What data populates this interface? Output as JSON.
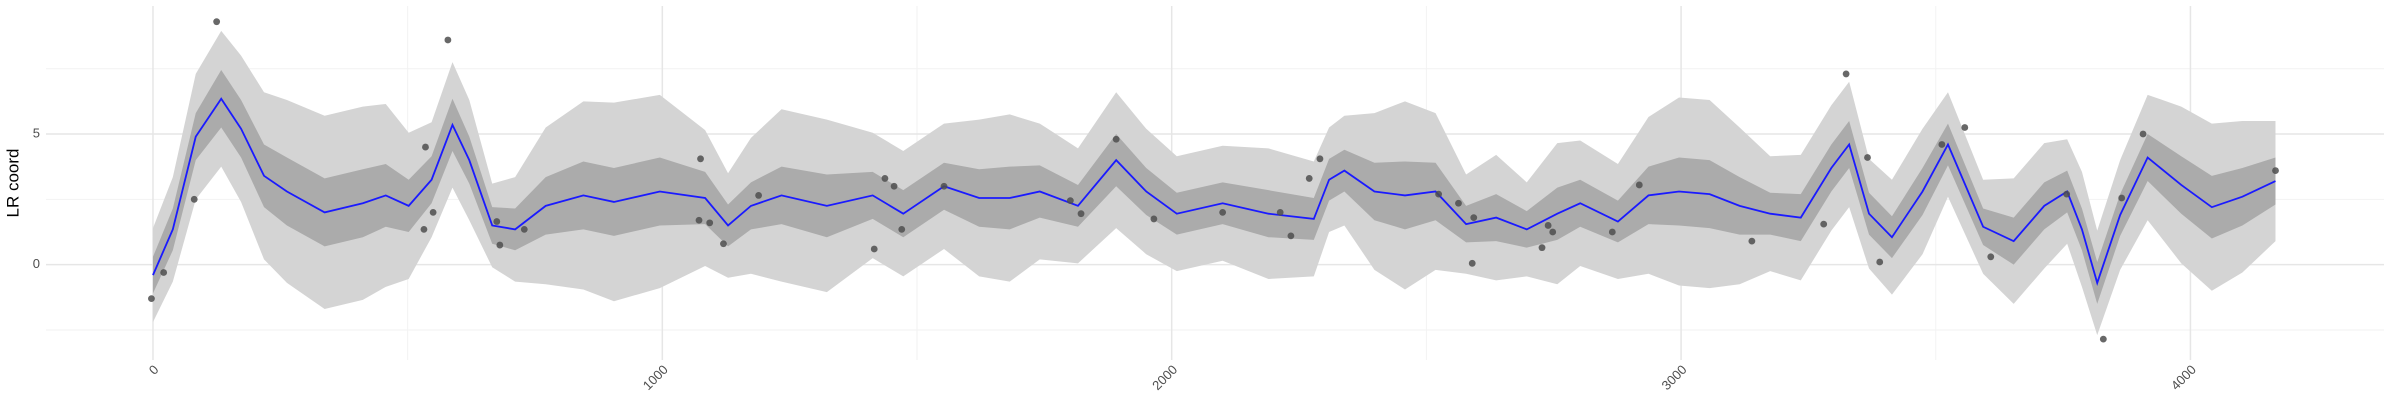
{
  "chart_data": {
    "type": "gp-regression",
    "y_label": "LR coord",
    "xlim": [
      -210,
      4380
    ],
    "ylim": [
      -3.65,
      9.9
    ],
    "xticks": [
      0,
      1000,
      2000,
      3000,
      4000
    ],
    "yticks": [
      0,
      5
    ],
    "x_minor_grid": [
      500,
      1500,
      2500,
      3500
    ],
    "y_minor_grid": [
      -2.5,
      2.5,
      7.5
    ],
    "grid": true,
    "x": [
      0,
      39,
      84,
      134,
      173,
      218,
      263,
      337,
      412,
      457,
      502,
      547,
      588,
      621,
      666,
      711,
      771,
      845,
      905,
      995,
      1084,
      1129,
      1174,
      1234,
      1323,
      1413,
      1473,
      1553,
      1622,
      1682,
      1741,
      1816,
      1891,
      1950,
      2010,
      2100,
      2190,
      2279,
      2309,
      2339,
      2398,
      2458,
      2518,
      2578,
      2637,
      2697,
      2757,
      2802,
      2876,
      2936,
      2996,
      3056,
      3115,
      3175,
      3235,
      3295,
      3330,
      3369,
      3414,
      3474,
      3524,
      3593,
      3653,
      3713,
      3758,
      3787,
      3817,
      3862,
      3916,
      3982,
      4042,
      4102,
      4167
    ],
    "bands": [
      {
        "color": "#d4d4d4",
        "lower": [
          -2.2,
          -0.65,
          2.5,
          3.75,
          2.4,
          0.2,
          -0.7,
          -1.7,
          -1.35,
          -0.85,
          -0.55,
          1.05,
          2.95,
          1.7,
          -0.1,
          -0.65,
          -0.75,
          -0.95,
          -1.4,
          -0.9,
          -0.05,
          -0.5,
          -0.35,
          -0.65,
          -1.05,
          0.25,
          -0.45,
          0.6,
          -0.45,
          -0.65,
          0.2,
          0.05,
          1.4,
          0.4,
          -0.25,
          0.15,
          -0.55,
          -0.45,
          1.25,
          1.5,
          -0.2,
          -0.95,
          -0.2,
          -0.35,
          -0.6,
          -0.45,
          -0.75,
          -0.05,
          -0.55,
          -0.35,
          -0.8,
          -0.9,
          -0.75,
          -0.25,
          -0.6,
          1.3,
          2.2,
          -0.15,
          -1.15,
          0.4,
          2.6,
          -0.35,
          -1.5,
          -0.15,
          0.8,
          -0.85,
          -2.7,
          -0.2,
          1.7,
          0.05,
          -1.0,
          -0.3,
          0.9
        ],
        "upper": [
          1.4,
          3.35,
          7.3,
          8.95,
          8.0,
          6.6,
          6.3,
          5.7,
          6.05,
          6.15,
          5.05,
          5.45,
          7.75,
          6.3,
          3.1,
          3.35,
          5.25,
          6.25,
          6.2,
          6.5,
          5.15,
          3.5,
          4.85,
          5.95,
          5.55,
          5.05,
          4.35,
          5.4,
          5.55,
          5.75,
          5.4,
          4.45,
          6.6,
          5.2,
          4.15,
          4.55,
          4.45,
          3.95,
          5.25,
          5.7,
          5.8,
          6.25,
          5.8,
          3.45,
          4.2,
          3.15,
          4.65,
          4.75,
          3.85,
          5.65,
          6.4,
          6.3,
          5.25,
          4.15,
          4.2,
          6.1,
          7.0,
          4.05,
          3.25,
          5.2,
          6.6,
          3.25,
          3.3,
          4.65,
          4.8,
          3.55,
          1.3,
          4.0,
          6.5,
          6.05,
          5.4,
          5.5,
          5.5
        ]
      },
      {
        "color": "#ababab",
        "lower": [
          -1.1,
          0.55,
          4.0,
          5.25,
          4.1,
          2.2,
          1.5,
          0.7,
          1.05,
          1.45,
          1.25,
          2.35,
          4.35,
          3.1,
          0.8,
          0.55,
          1.15,
          1.35,
          1.1,
          1.5,
          1.55,
          0.7,
          1.35,
          1.55,
          1.05,
          1.75,
          1.05,
          2.1,
          1.45,
          1.35,
          1.8,
          1.45,
          3.0,
          1.9,
          1.15,
          1.55,
          1.05,
          0.95,
          2.45,
          2.8,
          1.7,
          1.35,
          1.7,
          0.85,
          0.9,
          0.65,
          0.95,
          1.45,
          0.85,
          1.55,
          1.5,
          1.4,
          1.15,
          1.15,
          0.9,
          2.8,
          3.7,
          1.15,
          0.25,
          1.9,
          3.8,
          0.75,
          0.0,
          1.35,
          2.0,
          0.55,
          -1.5,
          1.1,
          3.2,
          1.95,
          1.0,
          1.5,
          2.3
        ],
        "upper": [
          0.3,
          2.15,
          5.8,
          7.45,
          6.3,
          4.6,
          4.1,
          3.3,
          3.65,
          3.85,
          3.25,
          4.15,
          6.35,
          4.9,
          2.2,
          2.15,
          3.35,
          3.95,
          3.7,
          4.1,
          3.55,
          2.3,
          3.15,
          3.75,
          3.45,
          3.55,
          2.85,
          3.9,
          3.65,
          3.75,
          3.8,
          3.05,
          5.0,
          3.7,
          2.75,
          3.15,
          2.85,
          2.55,
          4.05,
          4.4,
          3.9,
          3.95,
          3.9,
          2.25,
          2.7,
          2.05,
          2.95,
          3.25,
          2.45,
          3.75,
          4.1,
          4.0,
          3.35,
          2.75,
          2.7,
          4.6,
          5.5,
          2.75,
          1.85,
          3.7,
          5.4,
          2.15,
          1.8,
          3.15,
          3.6,
          2.15,
          0.1,
          2.7,
          5.0,
          4.15,
          3.4,
          3.7,
          4.1
        ]
      }
    ],
    "mean": {
      "color": "#1a1aff",
      "values": [
        -0.4,
        1.35,
        4.9,
        6.35,
        5.2,
        3.4,
        2.8,
        2.0,
        2.35,
        2.65,
        2.25,
        3.25,
        5.35,
        4.0,
        1.5,
        1.35,
        2.25,
        2.65,
        2.4,
        2.8,
        2.55,
        1.5,
        2.25,
        2.65,
        2.25,
        2.65,
        1.95,
        3.0,
        2.55,
        2.55,
        2.8,
        2.25,
        4.0,
        2.8,
        1.95,
        2.35,
        1.95,
        1.75,
        3.25,
        3.6,
        2.8,
        2.65,
        2.8,
        1.55,
        1.8,
        1.35,
        1.95,
        2.35,
        1.65,
        2.65,
        2.8,
        2.7,
        2.25,
        1.95,
        1.8,
        3.7,
        4.6,
        1.95,
        1.05,
        2.8,
        4.6,
        1.45,
        0.9,
        2.25,
        2.8,
        1.35,
        -0.7,
        1.9,
        4.1,
        3.05,
        2.2,
        2.6,
        3.2
      ]
    },
    "points": {
      "color": "#4d4d4d",
      "x": [
        -3,
        21,
        81,
        125,
        532,
        535,
        550,
        579,
        675,
        681,
        729,
        1072,
        1075,
        1093,
        1120,
        1189,
        1416,
        1437,
        1455,
        1470,
        1553,
        1801,
        1822,
        1891,
        1965,
        2100,
        2213,
        2234,
        2270,
        2291,
        2524,
        2563,
        2590,
        2593,
        2727,
        2739,
        2748,
        2865,
        2918,
        3139,
        3280,
        3324,
        3366,
        3390,
        3512,
        3557,
        3608,
        3757,
        3829,
        3865,
        3907,
        4167
      ],
      "y": [
        -1.3,
        -0.3,
        2.5,
        9.3,
        1.35,
        4.5,
        2.0,
        8.6,
        1.65,
        0.75,
        1.35,
        1.7,
        4.05,
        1.6,
        0.8,
        2.65,
        0.6,
        3.3,
        3.0,
        1.35,
        3.0,
        2.45,
        1.95,
        4.8,
        1.75,
        2.0,
        2.0,
        1.1,
        3.3,
        4.05,
        2.7,
        2.35,
        0.05,
        1.8,
        0.65,
        1.5,
        1.25,
        1.25,
        3.05,
        0.9,
        1.55,
        7.3,
        4.1,
        0.1,
        4.6,
        5.25,
        0.3,
        2.7,
        -2.85,
        2.55,
        5.0,
        3.6
      ]
    }
  }
}
